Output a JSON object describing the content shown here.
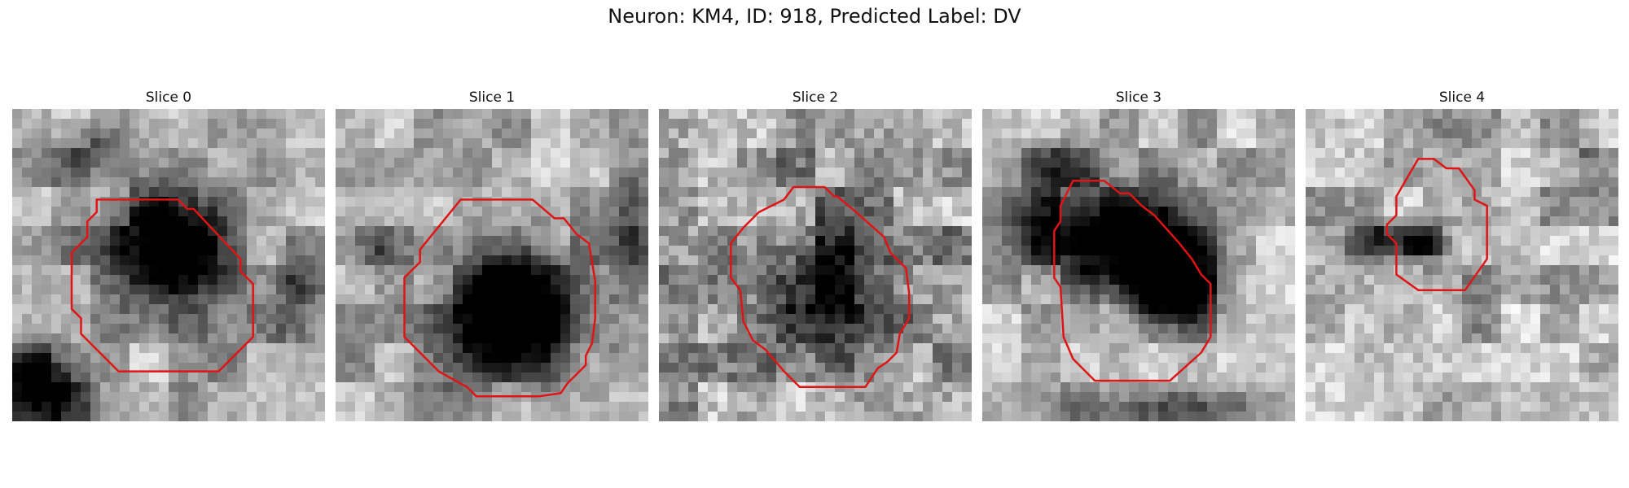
{
  "figure": {
    "title": "Neuron: KM4, ID: 918, Predicted Label: DV"
  },
  "panels": [
    {
      "title": "Slice 0"
    },
    {
      "title": "Slice 1"
    },
    {
      "title": "Slice 2"
    },
    {
      "title": "Slice 3"
    },
    {
      "title": "Slice 4"
    }
  ],
  "contour_color": "#e01414"
}
